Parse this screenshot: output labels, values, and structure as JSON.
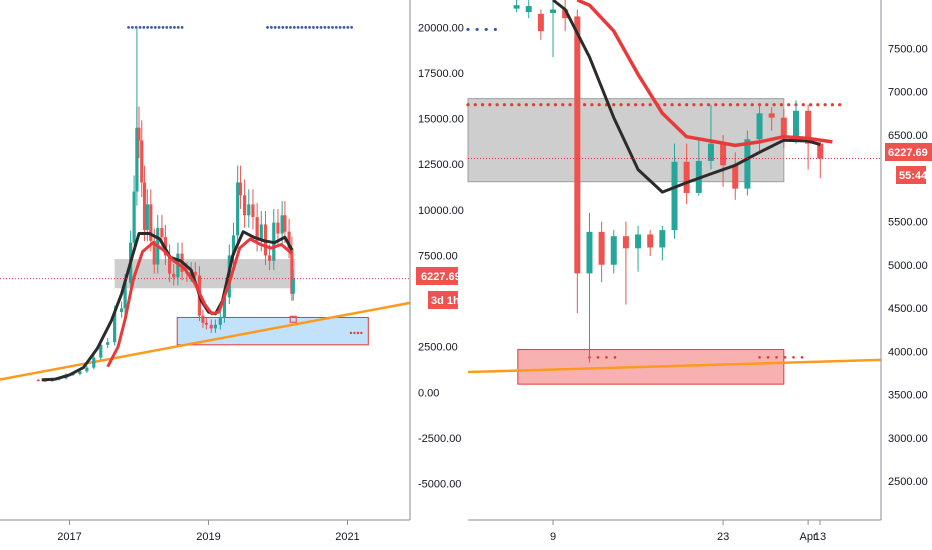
{
  "colors": {
    "up": "#26a69a",
    "down": "#ef5350",
    "ema_fast": "#e83a3a",
    "ema_slow": "#2b2b2b",
    "trend": "#ff9a1f",
    "resistance_dots": "#3d5aa8",
    "price_line": "#e53935",
    "grey_zone": "#bdbdbd",
    "blue_zone": "#bbdefb",
    "red_zone": "#f7a8a8",
    "red_dots": "#e53935"
  },
  "left_panel": {
    "y_ticks": [
      "20000.00",
      "17500.00",
      "15000.00",
      "12500.00",
      "10000.00",
      "7500.00",
      "2500.00",
      "0.00",
      "-2500.00",
      "-5000.00"
    ],
    "x_ticks": [
      "2017",
      "2019",
      "2021"
    ],
    "price_tag": "6227.69",
    "countdown_tag": "3d 1h"
  },
  "right_panel": {
    "y_ticks": [
      "7500.00",
      "7000.00",
      "6500.00",
      "5500.00",
      "5000.00",
      "4500.00",
      "4000.00",
      "3500.00",
      "3000.00",
      "2500.00"
    ],
    "x_ticks": [
      "9",
      "23",
      "Apr",
      "13"
    ],
    "price_tag": "6227.69",
    "countdown_tag": "55:44"
  },
  "chart_data": [
    {
      "type": "candlestick",
      "panel": "left",
      "timeframe": "weekly",
      "y_ticks": [
        20000,
        17500,
        15000,
        12500,
        10000,
        7500,
        2500,
        0,
        -2500,
        -5000
      ],
      "x_ticks": [
        "2017",
        "2019",
        "2021"
      ],
      "last_price": 6227.69,
      "x_range": [
        2016.0,
        2021.9
      ],
      "ylim": [
        -7000,
        21500
      ],
      "close_series": [
        [
          2016.45,
          680
        ],
        [
          2016.55,
          640
        ],
        [
          2016.65,
          610
        ],
        [
          2016.75,
          700
        ],
        [
          2016.85,
          760
        ],
        [
          2016.95,
          960
        ],
        [
          2017.05,
          1000
        ],
        [
          2017.15,
          1150
        ],
        [
          2017.25,
          1350
        ],
        [
          2017.35,
          1900
        ],
        [
          2017.45,
          2600
        ],
        [
          2017.55,
          2750
        ],
        [
          2017.65,
          4400
        ],
        [
          2017.75,
          4600
        ],
        [
          2017.8,
          6000
        ],
        [
          2017.88,
          8200
        ],
        [
          2017.93,
          11000
        ],
        [
          2017.97,
          14500
        ],
        [
          2018.0,
          13800
        ],
        [
          2018.04,
          11500
        ],
        [
          2018.08,
          8900
        ],
        [
          2018.12,
          10300
        ],
        [
          2018.17,
          8300
        ],
        [
          2018.22,
          7000
        ],
        [
          2018.27,
          9000
        ],
        [
          2018.33,
          8500
        ],
        [
          2018.38,
          7500
        ],
        [
          2018.44,
          6500
        ],
        [
          2018.5,
          6300
        ],
        [
          2018.56,
          7600
        ],
        [
          2018.62,
          6600
        ],
        [
          2018.69,
          6500
        ],
        [
          2018.75,
          6600
        ],
        [
          2018.81,
          6400
        ],
        [
          2018.87,
          4200
        ],
        [
          2018.92,
          3800
        ],
        [
          2018.97,
          3700
        ],
        [
          2019.04,
          3500
        ],
        [
          2019.1,
          3700
        ],
        [
          2019.17,
          4100
        ],
        [
          2019.23,
          5200
        ],
        [
          2019.3,
          7500
        ],
        [
          2019.36,
          8600
        ],
        [
          2019.42,
          11500
        ],
        [
          2019.46,
          10800
        ],
        [
          2019.52,
          9700
        ],
        [
          2019.58,
          10300
        ],
        [
          2019.64,
          9600
        ],
        [
          2019.7,
          8300
        ],
        [
          2019.76,
          9200
        ],
        [
          2019.82,
          7500
        ],
        [
          2019.88,
          7200
        ],
        [
          2019.94,
          9300
        ],
        [
          2020.0,
          8700
        ],
        [
          2020.06,
          9700
        ],
        [
          2020.1,
          8800
        ],
        [
          2020.16,
          7900
        ],
        [
          2020.2,
          5400
        ],
        [
          2020.22,
          6227.69
        ]
      ],
      "ema_fast": [
        [
          2017.55,
          1400
        ],
        [
          2017.7,
          2500
        ],
        [
          2017.8,
          4000
        ],
        [
          2017.92,
          6200
        ],
        [
          2018.05,
          7700
        ],
        [
          2018.2,
          8200
        ],
        [
          2018.35,
          7800
        ],
        [
          2018.5,
          7200
        ],
        [
          2018.65,
          6800
        ],
        [
          2018.8,
          6000
        ],
        [
          2018.95,
          4800
        ],
        [
          2019.05,
          4300
        ],
        [
          2019.15,
          4400
        ],
        [
          2019.3,
          6000
        ],
        [
          2019.45,
          7900
        ],
        [
          2019.6,
          8400
        ],
        [
          2019.75,
          8100
        ],
        [
          2019.9,
          7900
        ],
        [
          2020.05,
          8100
        ],
        [
          2020.2,
          7600
        ]
      ],
      "ema_slow": [
        [
          2016.6,
          680
        ],
        [
          2016.8,
          720
        ],
        [
          2017.0,
          950
        ],
        [
          2017.2,
          1350
        ],
        [
          2017.4,
          2400
        ],
        [
          2017.6,
          3900
        ],
        [
          2017.75,
          5400
        ],
        [
          2017.9,
          7400
        ],
        [
          2018.0,
          8700
        ],
        [
          2018.15,
          8700
        ],
        [
          2018.3,
          8400
        ],
        [
          2018.45,
          7400
        ],
        [
          2018.6,
          7200
        ],
        [
          2018.75,
          6700
        ],
        [
          2018.9,
          5000
        ],
        [
          2019.0,
          4400
        ],
        [
          2019.1,
          4300
        ],
        [
          2019.2,
          5000
        ],
        [
          2019.35,
          7500
        ],
        [
          2019.5,
          8800
        ],
        [
          2019.65,
          8500
        ],
        [
          2019.8,
          8300
        ],
        [
          2019.95,
          8200
        ],
        [
          2020.1,
          8500
        ],
        [
          2020.2,
          7800
        ]
      ],
      "trendline": [
        [
          2016.0,
          700
        ],
        [
          2021.9,
          4900
        ]
      ],
      "resistance_dots": [
        [
          2017.85,
          2018.65,
          20000
        ],
        [
          2019.85,
          2021.1,
          20000
        ]
      ],
      "zones": [
        {
          "kind": "grey",
          "x": [
            2017.65,
            2020.25
          ],
          "y": [
            5700,
            7300
          ]
        },
        {
          "kind": "blue",
          "x": [
            2018.55,
            2021.3
          ],
          "y": [
            2600,
            4100
          ]
        }
      ]
    },
    {
      "type": "candlestick",
      "panel": "right",
      "timeframe": "daily",
      "y_ticks": [
        7500,
        7000,
        6500,
        5500,
        5000,
        4500,
        4000,
        3500,
        3000,
        2500
      ],
      "x_ticks": [
        "9",
        "23",
        "Apr",
        "13"
      ],
      "last_price": 6227.69,
      "x_range": [
        2,
        36
      ],
      "ylim": [
        2050,
        8060
      ],
      "candles": [
        [
          6,
          7960,
          8000,
          7920,
          8060
        ],
        [
          7,
          7920,
          7990,
          7850,
          8060
        ],
        [
          8,
          7900,
          7700,
          7600,
          7950
        ],
        [
          9,
          7910,
          7950,
          7400,
          8060
        ],
        [
          10,
          7950,
          7850,
          7700,
          8060
        ],
        [
          11,
          7870,
          4900,
          4440,
          7950
        ],
        [
          12,
          4900,
          5380,
          3870,
          5600
        ],
        [
          13,
          5380,
          5000,
          4800,
          5500
        ],
        [
          14,
          5000,
          5330,
          4900,
          5400
        ],
        [
          15,
          5330,
          5190,
          4540,
          5500
        ],
        [
          16,
          5190,
          5350,
          4920,
          5450
        ],
        [
          17,
          5350,
          5200,
          5100,
          5400
        ],
        [
          18,
          5200,
          5400,
          5050,
          5450
        ],
        [
          19,
          5400,
          6190,
          5300,
          6400
        ],
        [
          20,
          6190,
          5830,
          5700,
          6400
        ],
        [
          21,
          5830,
          6200,
          5800,
          6450
        ],
        [
          22,
          6200,
          6400,
          6100,
          6850
        ],
        [
          23,
          6400,
          6150,
          5900,
          6500
        ],
        [
          24,
          6150,
          5880,
          5750,
          6300
        ],
        [
          25,
          5880,
          6450,
          5800,
          6550
        ],
        [
          26,
          6450,
          6750,
          6300,
          6850
        ],
        [
          27,
          6750,
          6700,
          6550,
          6820
        ],
        [
          28,
          6700,
          6470,
          6350,
          6800
        ],
        [
          29,
          6470,
          6780,
          6400,
          6900
        ],
        [
          30,
          6780,
          6400,
          6100,
          6850
        ],
        [
          31,
          6400,
          6227.69,
          6000,
          6450
        ]
      ],
      "ema_fast": [
        [
          11,
          8060
        ],
        [
          12,
          8000
        ],
        [
          14,
          7700
        ],
        [
          16,
          7200
        ],
        [
          18,
          6750
        ],
        [
          20,
          6480
        ],
        [
          22,
          6430
        ],
        [
          24,
          6380
        ],
        [
          26,
          6420
        ],
        [
          28,
          6480
        ],
        [
          30,
          6460
        ],
        [
          32,
          6420
        ]
      ],
      "ema_slow": [
        [
          9,
          8060
        ],
        [
          10,
          7950
        ],
        [
          12,
          7400
        ],
        [
          14,
          6700
        ],
        [
          16,
          6100
        ],
        [
          18,
          5840
        ],
        [
          20,
          5950
        ],
        [
          22,
          6050
        ],
        [
          24,
          6150
        ],
        [
          26,
          6300
        ],
        [
          28,
          6440
        ],
        [
          30,
          6430
        ],
        [
          31,
          6390
        ]
      ],
      "trendline": [
        [
          2,
          3760
        ],
        [
          36,
          3900
        ]
      ],
      "red_dots": [
        [
          2,
          33,
          6850
        ]
      ],
      "blue_dots": [
        [
          2,
          4.6,
          7720
        ]
      ],
      "zones": [
        {
          "kind": "grey",
          "x": [
            2,
            28
          ],
          "y": [
            5960,
            6920
          ]
        },
        {
          "kind": "red",
          "x": [
            6.1,
            28
          ],
          "y": [
            3620,
            4020
          ]
        }
      ],
      "zone_dots": [
        [
          12,
          14.5,
          3930
        ],
        [
          26,
          30,
          3930
        ]
      ]
    }
  ]
}
